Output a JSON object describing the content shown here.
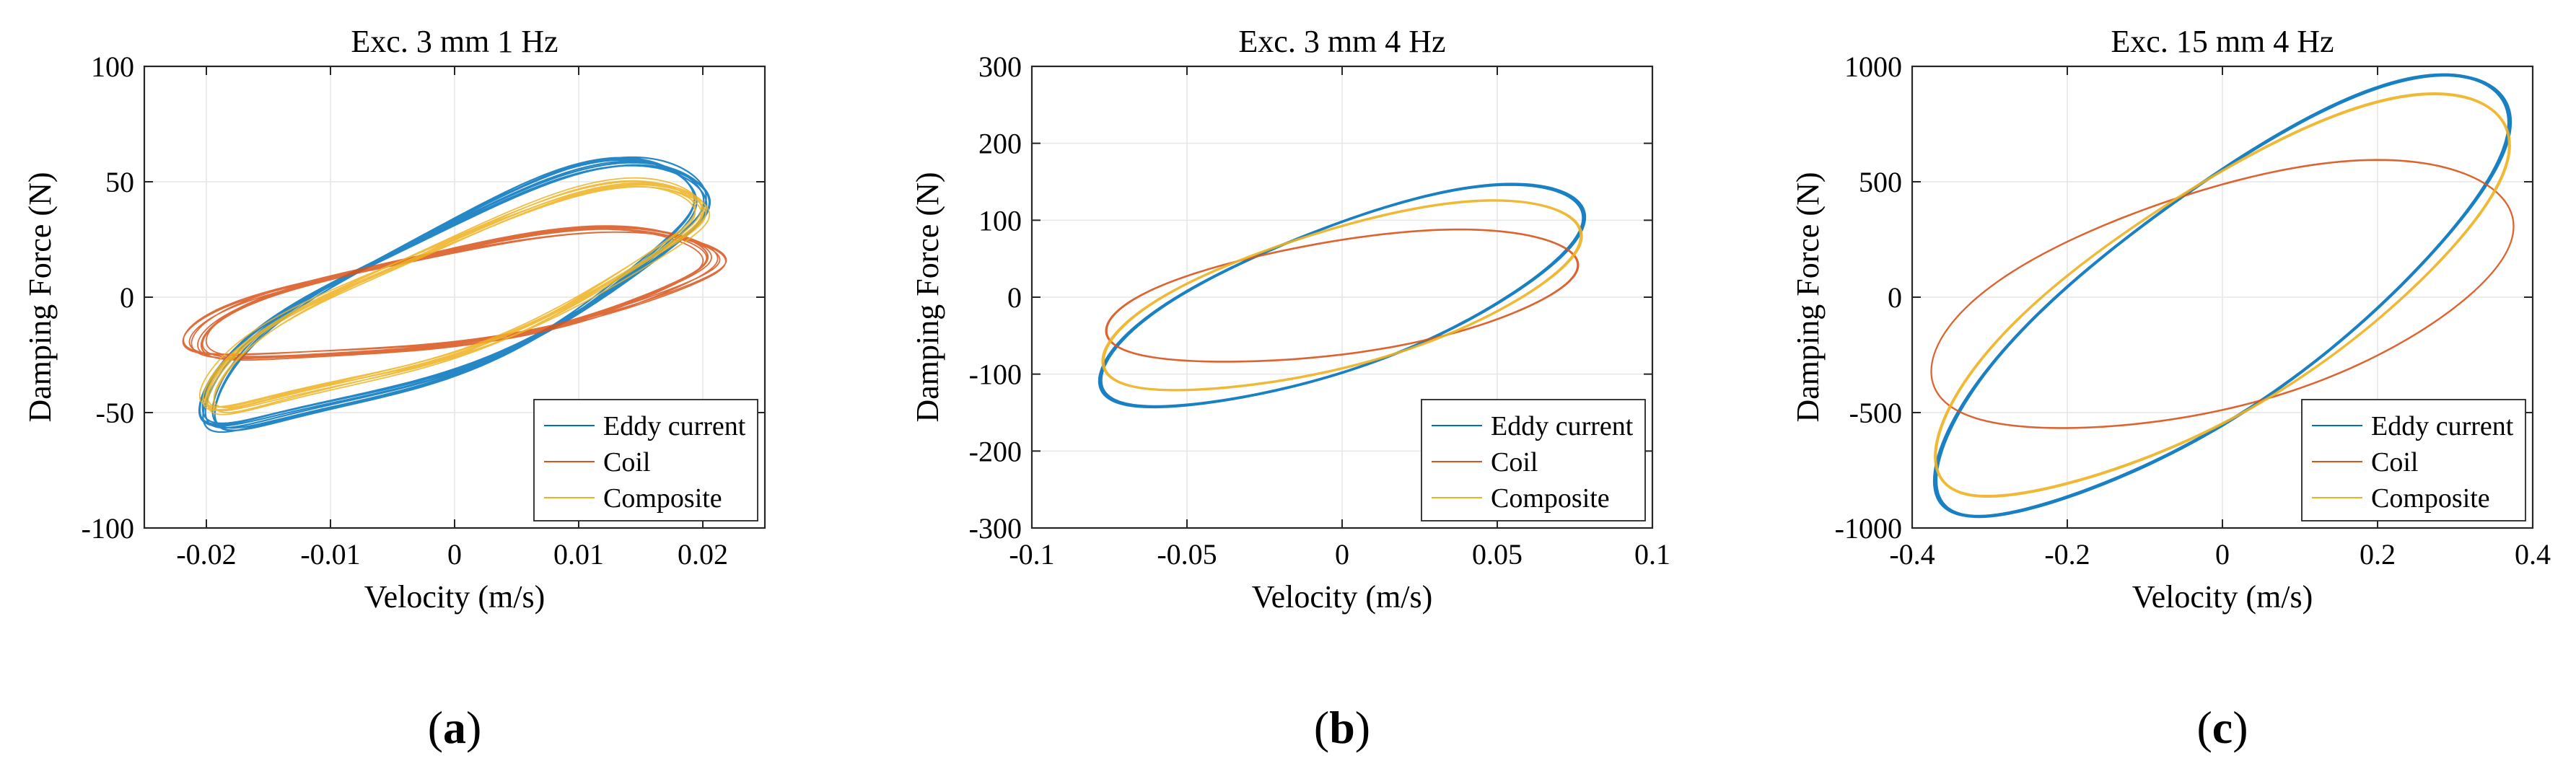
{
  "chart_data": [
    {
      "type": "line",
      "title": "Exc. 3 mm 1 Hz",
      "xlabel": "Velocity (m/s)",
      "ylabel": "Damping Force (N)",
      "xlim": [
        -0.025,
        0.025
      ],
      "ylim": [
        -100,
        100
      ],
      "xticks": [
        -0.02,
        -0.01,
        0,
        0.01,
        0.02
      ],
      "xtick_labels": [
        "-0.02",
        "-0.01",
        "0",
        "0.01",
        "0.02"
      ],
      "yticks": [
        -100,
        -50,
        0,
        50,
        100
      ],
      "ytick_labels": [
        "-100",
        "-50",
        "0",
        "50",
        "100"
      ],
      "grid": true,
      "legend": "bottom-right",
      "panel_label": "a",
      "series": [
        {
          "name": "Eddy current",
          "color": "#0072BD",
          "amplitude": 0.02,
          "cross_slope": 2800,
          "phase": 0.62,
          "cycles": 9,
          "noise": 0.07
        },
        {
          "name": "Coil",
          "color": "#D95319",
          "amplitude": 0.021,
          "cross_slope": 1300,
          "phase": 0.85,
          "cycles": 9,
          "noise": 0.1
        },
        {
          "name": "Composite",
          "color": "#EDB120",
          "amplitude": 0.02,
          "cross_slope": 2400,
          "phase": 0.55,
          "cycles": 9,
          "noise": 0.09
        }
      ]
    },
    {
      "type": "line",
      "title": "Exc. 3 mm 4 Hz",
      "xlabel": "Velocity (m/s)",
      "ylabel": "Damping Force (N)",
      "xlim": [
        -0.1,
        0.1
      ],
      "ylim": [
        -300,
        300
      ],
      "xticks": [
        -0.1,
        -0.05,
        0,
        0.05,
        0.1
      ],
      "xtick_labels": [
        "-0.1",
        "-0.05",
        "0",
        "0.05",
        "0.1"
      ],
      "yticks": [
        -300,
        -200,
        -100,
        0,
        100,
        200,
        300
      ],
      "ytick_labels": [
        "-300",
        "-200",
        "-100",
        "0",
        "100",
        "200",
        "300"
      ],
      "grid": true,
      "legend": "bottom-right",
      "panel_label": "b",
      "series": [
        {
          "name": "Eddy current",
          "color": "#0072BD",
          "amplitude": 0.078,
          "cross_slope": 1850,
          "phase": 0.75,
          "cycles": 8,
          "noise": 0.012
        },
        {
          "name": "Coil",
          "color": "#D95319",
          "amplitude": 0.076,
          "cross_slope": 1130,
          "phase": 1.05,
          "cycles": 4,
          "noise": 0.004
        },
        {
          "name": "Composite",
          "color": "#EDB120",
          "amplitude": 0.077,
          "cross_slope": 1600,
          "phase": 0.85,
          "cycles": 6,
          "noise": 0.008
        }
      ]
    },
    {
      "type": "line",
      "title": "Exc. 15 mm 4 Hz",
      "xlabel": "Velocity (m/s)",
      "ylabel": "Damping Force (N)",
      "xlim": [
        -0.4,
        0.4
      ],
      "ylim": [
        -1000,
        1000
      ],
      "xticks": [
        -0.4,
        -0.2,
        0,
        0.2,
        0.4
      ],
      "xtick_labels": [
        "-0.4",
        "-0.2",
        "0",
        "0.2",
        "0.4"
      ],
      "yticks": [
        -1000,
        -500,
        0,
        500,
        1000
      ],
      "ytick_labels": [
        "-1000",
        "-500",
        "0",
        "500",
        "1000"
      ],
      "grid": true,
      "legend": "bottom-right",
      "panel_label": "c",
      "series": [
        {
          "name": "Eddy current",
          "color": "#0072BD",
          "amplitude": 0.37,
          "cross_slope": 2580,
          "phase": 0.62,
          "cycles": 8,
          "noise": 0.012
        },
        {
          "name": "Coil",
          "color": "#D95319",
          "amplitude": 0.375,
          "cross_slope": 1550,
          "phase": 1.0,
          "cycles": 3,
          "noise": 0.004
        },
        {
          "name": "Composite",
          "color": "#EDB120",
          "amplitude": 0.37,
          "cross_slope": 2350,
          "phase": 0.68,
          "cycles": 6,
          "noise": 0.008
        }
      ]
    }
  ]
}
